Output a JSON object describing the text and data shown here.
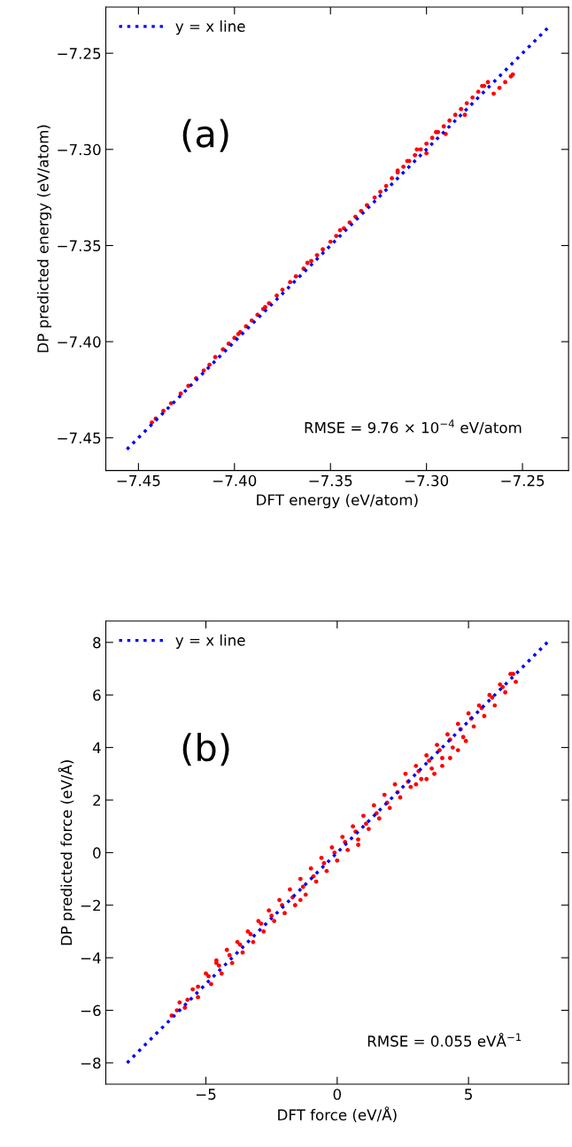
{
  "chart_data": [
    {
      "type": "scatter",
      "xlabel": "DFT energy (eV/atom)",
      "ylabel": "DP predicted energy (eV/atom)",
      "xlim": [
        -7.467,
        -7.226
      ],
      "ylim": [
        -7.467,
        -7.226
      ],
      "xticks": [
        {
          "value": -7.45,
          "label": "−7.45"
        },
        {
          "value": -7.4,
          "label": "−7.40"
        },
        {
          "value": -7.35,
          "label": "−7.35"
        },
        {
          "value": -7.3,
          "label": "−7.30"
        },
        {
          "value": -7.25,
          "label": "−7.25"
        }
      ],
      "yticks": [
        {
          "value": -7.45,
          "label": "−7.45"
        },
        {
          "value": -7.4,
          "label": "−7.40"
        },
        {
          "value": -7.35,
          "label": "−7.35"
        },
        {
          "value": -7.3,
          "label": "−7.30"
        },
        {
          "value": -7.25,
          "label": "−7.25"
        }
      ],
      "legend": "top left",
      "annotations": [
        "(a)",
        "RMSE = 9.76 × 10$^{−4}$ eV/atom"
      ],
      "series": [
        {
          "type": "line",
          "name": "y = x line",
          "color": "#0000ff",
          "line_style": "dotted",
          "x": [
            -7.456,
            -7.237
          ],
          "values": [
            -7.456,
            -7.237
          ]
        },
        {
          "color": "#ff0000",
          "marker": "circle",
          "x": [
            -7.443,
            -7.441,
            -7.437,
            -7.433,
            -7.428,
            -7.424,
            -7.42,
            -7.416,
            -7.413,
            -7.41,
            -7.406,
            -7.403,
            -7.4,
            -7.397,
            -7.394,
            -7.391,
            -7.388,
            -7.385,
            -7.382,
            -7.378,
            -7.375,
            -7.371,
            -7.368,
            -7.364,
            -7.36,
            -7.357,
            -7.354,
            -7.35,
            -7.347,
            -7.343,
            -7.34,
            -7.337,
            -7.334,
            -7.331,
            -7.327,
            -7.324,
            -7.321,
            -7.318,
            -7.315,
            -7.312,
            -7.309,
            -7.306,
            -7.303,
            -7.3,
            -7.297,
            -7.294,
            -7.291,
            -7.288,
            -7.285,
            -7.282,
            -7.279,
            -7.276,
            -7.273,
            -7.27,
            -7.31,
            -7.3,
            -7.295,
            -7.305,
            -7.315,
            -7.29,
            -7.28,
            -7.265,
            -7.262,
            -7.259,
            -7.256,
            -7.255,
            -7.268,
            -7.271,
            -7.398,
            -7.384,
            -7.362,
            -7.345
          ],
          "values": [
            -7.442,
            -7.44,
            -7.436,
            -7.432,
            -7.427,
            -7.423,
            -7.419,
            -7.415,
            -7.412,
            -7.408,
            -7.404,
            -7.401,
            -7.398,
            -7.395,
            -7.392,
            -7.389,
            -7.386,
            -7.383,
            -7.38,
            -7.376,
            -7.373,
            -7.369,
            -7.366,
            -7.362,
            -7.358,
            -7.355,
            -7.352,
            -7.348,
            -7.345,
            -7.341,
            -7.338,
            -7.335,
            -7.332,
            -7.329,
            -7.325,
            -7.322,
            -7.319,
            -7.315,
            -7.312,
            -7.309,
            -7.306,
            -7.303,
            -7.3,
            -7.297,
            -7.294,
            -7.291,
            -7.288,
            -7.285,
            -7.282,
            -7.279,
            -7.276,
            -7.273,
            -7.27,
            -7.267,
            -7.306,
            -7.302,
            -7.291,
            -7.3,
            -7.311,
            -7.292,
            -7.282,
            -7.271,
            -7.268,
            -7.265,
            -7.262,
            -7.261,
            -7.265,
            -7.267,
            -7.396,
            -7.382,
            -7.359,
            -7.342
          ]
        }
      ]
    },
    {
      "type": "scatter",
      "xlabel": "DFT force (eV/Å)",
      "ylabel": "DP predicted force (eV/Å)",
      "xlim": [
        -8.81,
        8.81
      ],
      "ylim": [
        -8.81,
        8.81
      ],
      "xticks": [
        {
          "value": -5,
          "label": "−5"
        },
        0,
        5
      ],
      "yticks": [
        {
          "value": -8,
          "label": "−8"
        },
        {
          "value": -6,
          "label": "−6"
        },
        {
          "value": -4,
          "label": "−4"
        },
        {
          "value": -2,
          "label": "−2"
        },
        0,
        2,
        4,
        6,
        8
      ],
      "legend": "top left",
      "annotations": [
        "(b)",
        "RMSE = 0.055 eVÅ$^{−1}$"
      ],
      "series": [
        {
          "type": "line",
          "name": "y = x line",
          "color": "#0000ff",
          "line_style": "dotted",
          "x": [
            -8,
            8
          ],
          "values": [
            -8,
            8
          ]
        },
        {
          "color": "#ff0000",
          "marker": "circle",
          "x": [
            -6.0,
            -5.5,
            -5.0,
            -4.6,
            -4.2,
            -3.8,
            -3.4,
            -3.0,
            -2.6,
            -2.2,
            -1.8,
            -1.4,
            -1.0,
            -0.6,
            -0.2,
            0.2,
            0.6,
            1.0,
            1.4,
            1.8,
            2.2,
            2.6,
            3.0,
            3.4,
            3.8,
            4.2,
            4.6,
            5.0,
            5.4,
            5.8,
            6.2,
            6.6,
            -6.3,
            -5.8,
            -5.3,
            -4.8,
            -4.4,
            -4.0,
            -3.6,
            -3.2,
            -2.8,
            -2.4,
            -2.0,
            -1.6,
            -1.2,
            -0.8,
            -0.4,
            0,
            0.4,
            0.8,
            1.2,
            1.6,
            2.0,
            2.4,
            2.8,
            3.2,
            3.6,
            4.0,
            4.4,
            4.8,
            5.2,
            5.6,
            6.0,
            6.4,
            6.8,
            -6.1,
            -5.7,
            -5.3,
            -4.9,
            -4.5,
            -4.1,
            -3.7,
            -3.3,
            -2.9,
            -2.5,
            -2.1,
            -1.7,
            -1.3,
            -0.9,
            -0.5,
            -0.1,
            0.3,
            0.7,
            1.1,
            1.5,
            1.9,
            2.3,
            2.7,
            3.1,
            3.5,
            3.9,
            4.3,
            4.7,
            5.1,
            5.5,
            5.9,
            6.3,
            6.7,
            3.4,
            3.7,
            4.0,
            4.3,
            4.6,
            4.9,
            3.0,
            0.8,
            -1.4,
            -4.6
          ],
          "values": [
            -5.7,
            -5.2,
            -4.6,
            -4.1,
            -3.7,
            -3.4,
            -3.0,
            -2.6,
            -2.2,
            -1.8,
            -1.4,
            -1.0,
            -0.6,
            -0.2,
            0.2,
            0.6,
            1.0,
            1.4,
            1.8,
            2.2,
            2.6,
            3.0,
            3.3,
            3.7,
            4.1,
            4.5,
            4.9,
            5.3,
            5.6,
            6.0,
            6.4,
            6.8,
            -6.2,
            -5.9,
            -5.5,
            -5.0,
            -4.6,
            -4.2,
            -3.8,
            -3.4,
            -3.0,
            -2.6,
            -2.3,
            -2.0,
            -1.6,
            -1.1,
            -0.7,
            -0.3,
            0.1,
            0.5,
            0.9,
            1.3,
            1.7,
            2.1,
            2.5,
            2.8,
            3.2,
            3.6,
            4.0,
            4.4,
            4.8,
            5.2,
            5.6,
            6.1,
            6.5,
            -6.0,
            -5.6,
            -5.1,
            -4.7,
            -4.3,
            -3.9,
            -3.5,
            -3.1,
            -2.7,
            -2.4,
            -2.0,
            -1.7,
            -1.3,
            -0.9,
            -0.4,
            0.0,
            0.4,
            0.8,
            1.1,
            1.5,
            1.9,
            2.3,
            2.7,
            3.1,
            3.5,
            3.9,
            4.3,
            4.7,
            5.1,
            5.5,
            5.9,
            6.3,
            6.8,
            2.8,
            3.0,
            3.3,
            3.6,
            3.9,
            4.25,
            2.6,
            0.3,
            -1.8,
            -4.2
          ]
        }
      ]
    }
  ]
}
